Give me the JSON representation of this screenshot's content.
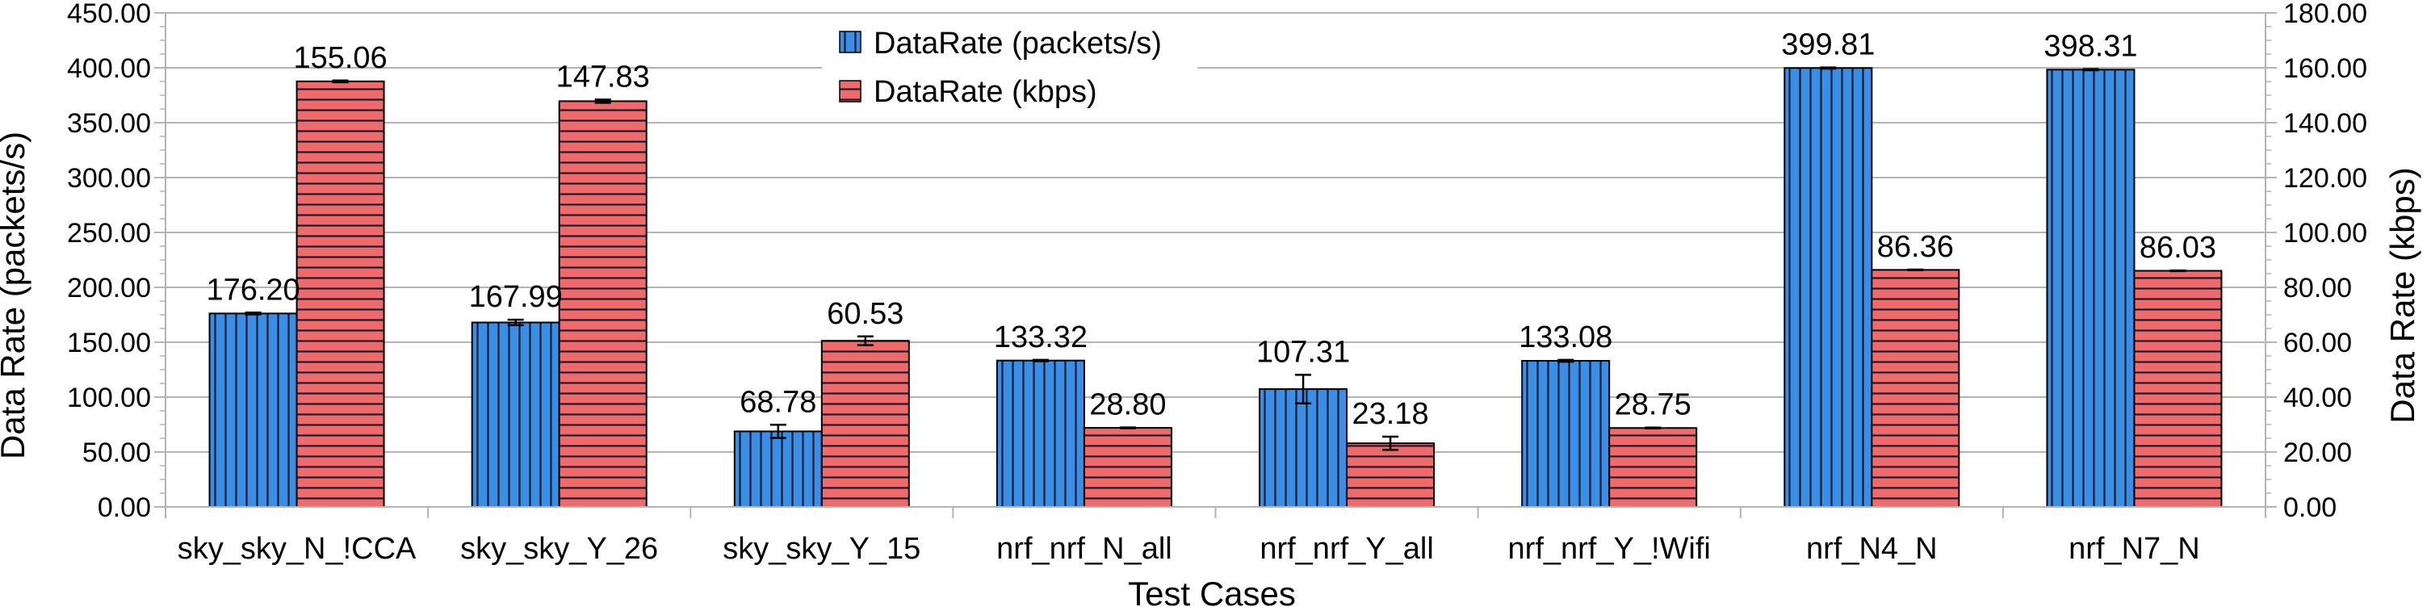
{
  "chart_data": {
    "type": "bar",
    "xlabel": "Test Cases",
    "ylabel": "Data Rate (packets/s)",
    "y2label": "Data Rate (kbps)",
    "ylim": [
      0,
      450
    ],
    "y2lim": [
      0,
      180
    ],
    "yticks": [
      "0.00",
      "50.00",
      "100.00",
      "150.00",
      "200.00",
      "250.00",
      "300.00",
      "350.00",
      "400.00",
      "450.00"
    ],
    "y2ticks": [
      "0.00",
      "20.00",
      "40.00",
      "60.00",
      "80.00",
      "100.00",
      "120.00",
      "140.00",
      "160.00",
      "180.00"
    ],
    "grid": true,
    "legend_position": "top-center",
    "categories": [
      "sky_sky_N_!CCA",
      "sky_sky_Y_26",
      "sky_sky_Y_15",
      "nrf_nrf_N_all",
      "nrf_nrf_Y_all",
      "nrf_nrf_Y_!Wifi",
      "nrf_N4_N",
      "nrf_N7_N"
    ],
    "series": [
      {
        "name": "DataRate (packets/s)",
        "axis": "left",
        "color": "#3a8ee6",
        "pattern": "vertical-lines",
        "values": [
          176.2,
          167.99,
          68.78,
          133.32,
          107.31,
          133.08,
          399.81,
          398.31
        ],
        "labels": [
          "176.20",
          "167.99",
          "68.78",
          "133.32",
          "107.31",
          "133.08",
          "399.81",
          "398.31"
        ],
        "errors": [
          0.8,
          2.5,
          6,
          0.6,
          13,
          0.8,
          0.5,
          0.5
        ]
      },
      {
        "name": "DataRate (kbps)",
        "axis": "right",
        "color": "#ef6a6a",
        "pattern": "horizontal-lines",
        "values": [
          155.06,
          147.83,
          60.53,
          28.8,
          23.18,
          28.75,
          86.36,
          86.03
        ],
        "labels": [
          "155.06",
          "147.83",
          "60.53",
          "28.80",
          "23.18",
          "28.75",
          "86.36",
          "86.03"
        ],
        "errors": [
          0.3,
          0.6,
          1.6,
          0.15,
          2.4,
          0.15,
          0.1,
          0.1
        ]
      }
    ]
  }
}
